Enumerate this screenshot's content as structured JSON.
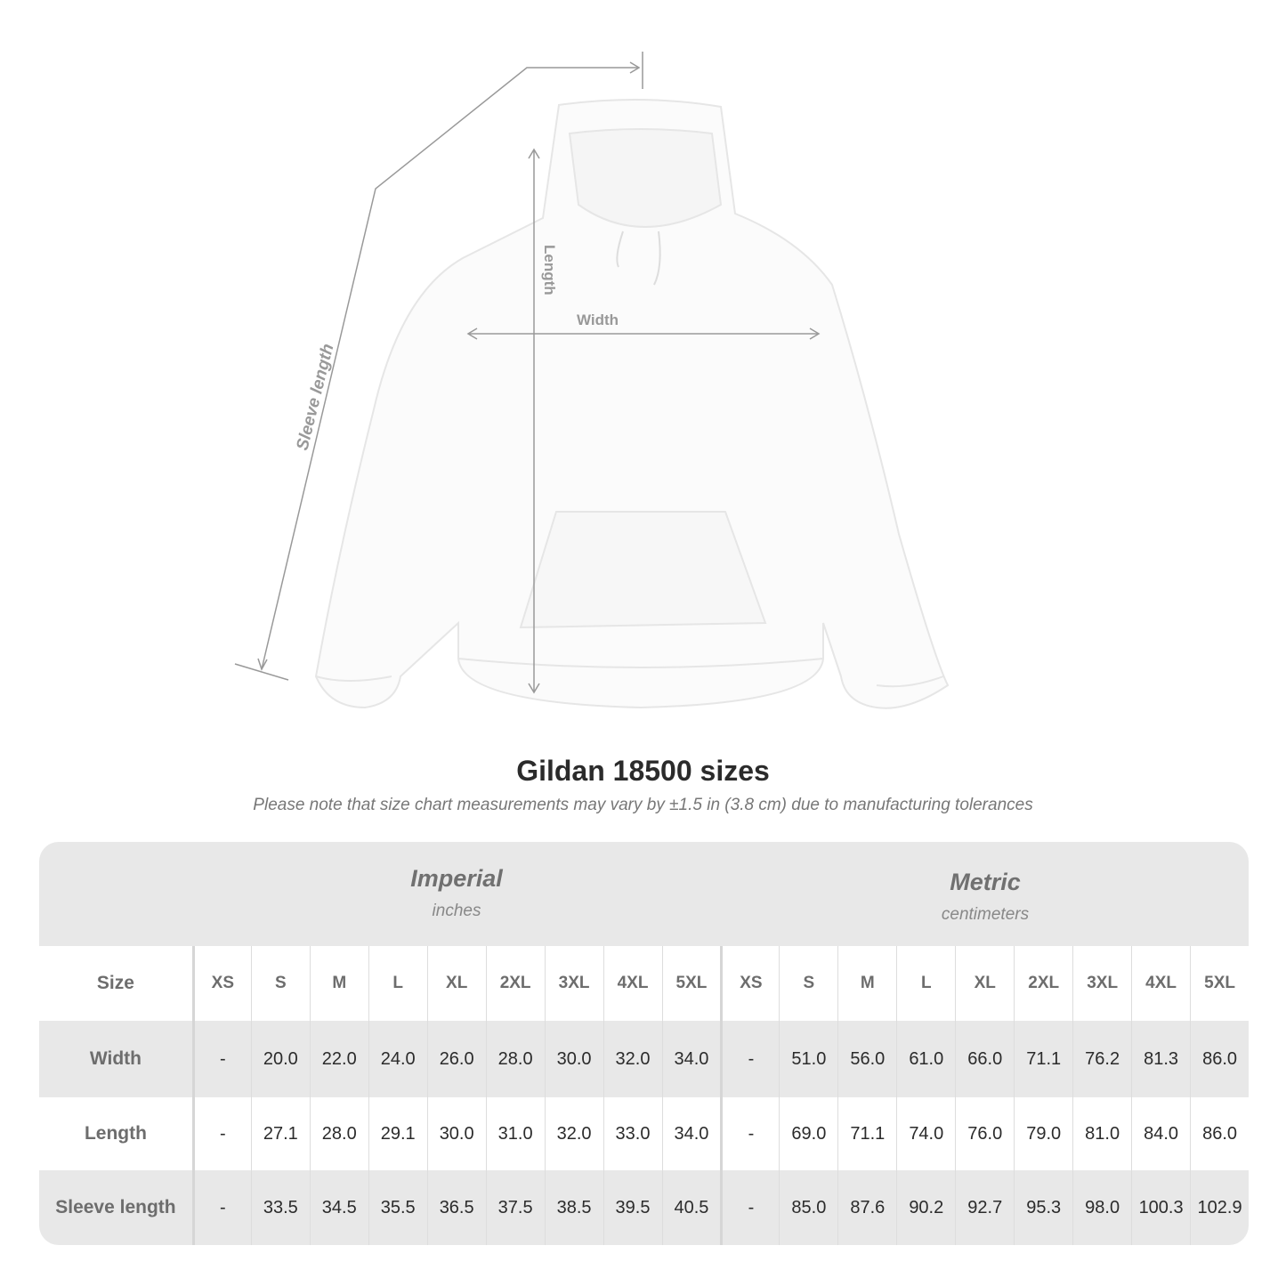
{
  "diagram": {
    "labels": {
      "length": "Length",
      "width": "Width",
      "sleeve": "Sleeve length"
    }
  },
  "title": "Gildan 18500 sizes",
  "subtitle": "Please note that size chart measurements may vary by ±1.5 in (3.8 cm) due to manufacturing tolerances",
  "table": {
    "imperial": {
      "name": "Imperial",
      "unit": "inches"
    },
    "metric": {
      "name": "Metric",
      "unit": "centimeters"
    },
    "size_label": "Size",
    "sizes": [
      "XS",
      "S",
      "M",
      "L",
      "XL",
      "2XL",
      "3XL",
      "4XL",
      "5XL"
    ],
    "rows": [
      {
        "label": "Width",
        "imperial": [
          "-",
          "20.0",
          "22.0",
          "24.0",
          "26.0",
          "28.0",
          "30.0",
          "32.0",
          "34.0"
        ],
        "metric": [
          "-",
          "51.0",
          "56.0",
          "61.0",
          "66.0",
          "71.1",
          "76.2",
          "81.3",
          "86.0"
        ]
      },
      {
        "label": "Length",
        "imperial": [
          "-",
          "27.1",
          "28.0",
          "29.1",
          "30.0",
          "31.0",
          "32.0",
          "33.0",
          "34.0"
        ],
        "metric": [
          "-",
          "69.0",
          "71.1",
          "74.0",
          "76.0",
          "79.0",
          "81.0",
          "84.0",
          "86.0"
        ]
      },
      {
        "label": "Sleeve length",
        "imperial": [
          "-",
          "33.5",
          "34.5",
          "35.5",
          "36.5",
          "37.5",
          "38.5",
          "39.5",
          "40.5"
        ],
        "metric": [
          "-",
          "85.0",
          "87.6",
          "90.2",
          "92.7",
          "95.3",
          "98.0",
          "100.3",
          "102.9"
        ]
      }
    ]
  },
  "colors": {
    "band": "#e8e8e8",
    "measure_line": "#999999"
  }
}
